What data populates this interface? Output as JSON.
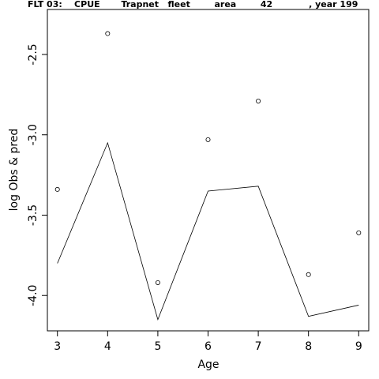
{
  "title": "FLT 03:    CPUE       Trapnet   fleet        area        42            , year 199",
  "chart_data": {
    "type": "line",
    "title": "FLT 03:    CPUE       Trapnet   fleet        area        42            , year 199",
    "xlabel": "Age",
    "ylabel": "log Obs & pred",
    "x": [
      3,
      4,
      5,
      6,
      7,
      8,
      9
    ],
    "xticks": [
      "3",
      "4",
      "5",
      "6",
      "7",
      "8",
      "9"
    ],
    "yticks": [
      "-2.5",
      "-3.0",
      "-3.5",
      "-4.0"
    ],
    "ytick_values": [
      -2.5,
      -3.0,
      -3.5,
      -4.0
    ],
    "xlim": [
      2.8,
      9.2
    ],
    "ylim": [
      -4.22,
      -2.22
    ],
    "grid": false,
    "series": [
      {
        "style": "points",
        "values": [
          -3.34,
          -2.37,
          -3.92,
          -3.03,
          -2.79,
          -3.87,
          -3.61
        ]
      },
      {
        "style": "line",
        "values": [
          -3.8,
          -3.05,
          -4.15,
          -3.35,
          -3.32,
          -4.13,
          -4.06
        ]
      }
    ]
  }
}
